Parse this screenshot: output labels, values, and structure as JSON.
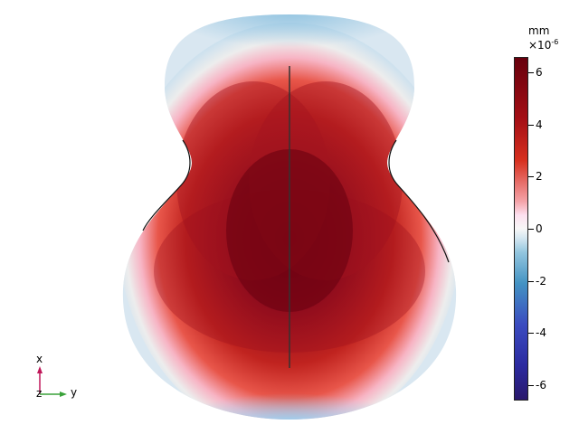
{
  "colorbar": {
    "unit": "mm",
    "exponent_base": "×10",
    "exponent_power": "-6",
    "ticks": [
      "6",
      "4",
      "2",
      "0",
      "-2",
      "-4",
      "-6"
    ],
    "range": [
      -6.6,
      6.6
    ],
    "colors": {
      "max": "#67000d",
      "mid": "#f7f7f7",
      "min": "#2a186c"
    }
  },
  "axis_triad": {
    "x_label": "x",
    "y_label": "y",
    "z_label": "z",
    "x_color": "#c0185a",
    "y_color": "#3aa23a"
  }
}
